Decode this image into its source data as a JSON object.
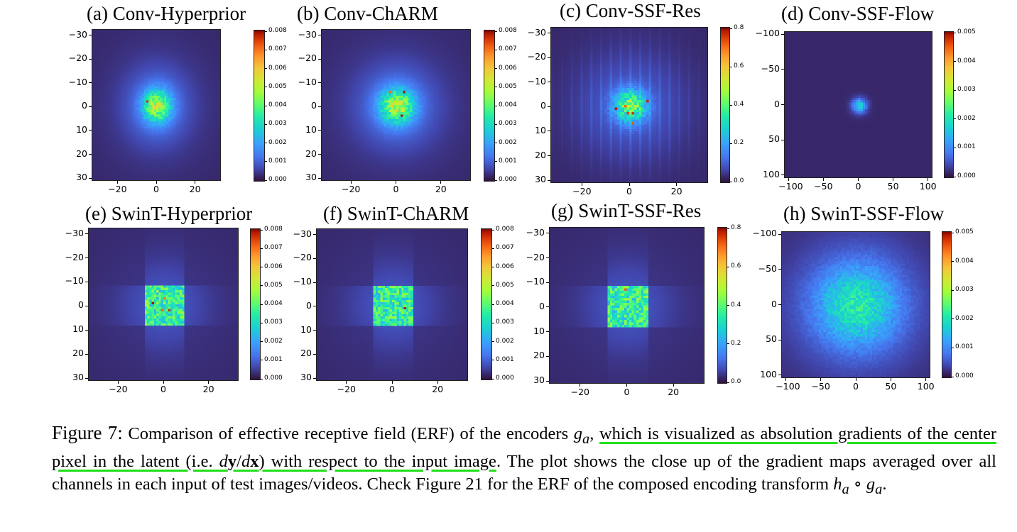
{
  "colormap": {
    "name": "turbo",
    "background": "#30123b",
    "stops": [
      "#30123b",
      "#4145ab",
      "#4675ed",
      "#39a2fc",
      "#1bcfd4",
      "#24eca6",
      "#61fc6c",
      "#a4fc3b",
      "#d1e834",
      "#f3c63a",
      "#fe9b2d",
      "#f36315",
      "#d93806",
      "#b11901",
      "#7a0403"
    ]
  },
  "panels": [
    {
      "title": "(a) Conv-Hyperprior",
      "x_ticks": [
        "−20",
        "0",
        "20"
      ],
      "y_ticks": [
        "−30",
        "−20",
        "−10",
        "0",
        "10",
        "20",
        "30"
      ],
      "cbar_ticks": [
        "0.008",
        "0.007",
        "0.006",
        "0.005",
        "0.004",
        "0.003",
        "0.002",
        "0.001",
        "0.000"
      ],
      "pattern": "blob",
      "spread": 0.3
    },
    {
      "title": "(b) Conv-ChARM",
      "x_ticks": [
        "−20",
        "0",
        "20"
      ],
      "y_ticks": [
        "−30",
        "−20",
        "−10",
        "0",
        "10",
        "20",
        "30"
      ],
      "cbar_ticks": [
        "0.008",
        "0.007",
        "0.006",
        "0.005",
        "0.004",
        "0.003",
        "0.002",
        "0.001",
        "0.000"
      ],
      "pattern": "blob",
      "spread": 0.32
    },
    {
      "title": "(c) Conv-SSF-Res",
      "x_ticks": [
        "−20",
        "0",
        "20"
      ],
      "y_ticks": [
        "−30",
        "−20",
        "−10",
        "0",
        "10",
        "20",
        "30"
      ],
      "cbar_ticks": [
        "0.8",
        "0.6",
        "0.4",
        "0.2",
        "0.0"
      ],
      "pattern": "stripes",
      "spread": 0.3
    },
    {
      "title": "(d) Conv-SSF-Flow",
      "x_ticks": [
        "−100",
        "−50",
        "0",
        "50",
        "100"
      ],
      "y_ticks": [
        "−100",
        "−50",
        "0",
        "50",
        "100"
      ],
      "cbar_ticks": [
        "0.005",
        "0.004",
        "0.003",
        "0.002",
        "0.001",
        "0.000"
      ],
      "pattern": "small",
      "spread": 0.12
    },
    {
      "title": "(e) SwinT-Hyperprior",
      "x_ticks": [
        "−20",
        "0",
        "20"
      ],
      "y_ticks": [
        "−30",
        "−20",
        "−10",
        "0",
        "10",
        "20",
        "30"
      ],
      "cbar_ticks": [
        "0.008",
        "0.007",
        "0.006",
        "0.005",
        "0.004",
        "0.003",
        "0.002",
        "0.001",
        "0.000"
      ],
      "pattern": "window",
      "spread": 0.3
    },
    {
      "title": "(f) SwinT-ChARM",
      "x_ticks": [
        "−20",
        "0",
        "20"
      ],
      "y_ticks": [
        "−30",
        "−20",
        "−10",
        "0",
        "10",
        "20",
        "30"
      ],
      "cbar_ticks": [
        "0.008",
        "0.007",
        "0.006",
        "0.005",
        "0.004",
        "0.003",
        "0.002",
        "0.001",
        "0.000"
      ],
      "pattern": "window",
      "spread": 0.3
    },
    {
      "title": "(g) SwinT-SSF-Res",
      "x_ticks": [
        "−20",
        "0",
        "20"
      ],
      "y_ticks": [
        "−30",
        "−20",
        "−10",
        "0",
        "10",
        "20",
        "30"
      ],
      "cbar_ticks": [
        "0.8",
        "0.6",
        "0.4",
        "0.2",
        "0.0"
      ],
      "pattern": "window",
      "spread": 0.3
    },
    {
      "title": "(h) SwinT-SSF-Flow",
      "x_ticks": [
        "−100",
        "−50",
        "0",
        "50",
        "100"
      ],
      "y_ticks": [
        "−100",
        "−50",
        "0",
        "50",
        "100"
      ],
      "cbar_ticks": [
        "0.005",
        "0.004",
        "0.003",
        "0.002",
        "0.001",
        "0.000"
      ],
      "pattern": "wide",
      "spread": 0.55
    }
  ],
  "caption": {
    "label": "Figure 7:",
    "text_1": " Comparison of effective receptive field (ERF) of the encoders ",
    "g_a": "g",
    "g_a_sub": "a",
    "comma": ", ",
    "highlight_1": "which is visualized as absolution gradients of the center pixel in the latent (i.e. ",
    "d1": "d",
    "y_bold": "y",
    "slash": "/",
    "d2": "d",
    "x_bold": "x",
    "highlight_2": ") with respect to the input image",
    "text_2": ". The plot shows the close up of the gradient maps averaged over all channels in each input of test images/videos. Check Figure 21 for the ERF of the composed encoding transform ",
    "h": "h",
    "h_sub": "a",
    "circ": " ∘ ",
    "g2": "g",
    "g2_sub": "a",
    "end": "."
  }
}
